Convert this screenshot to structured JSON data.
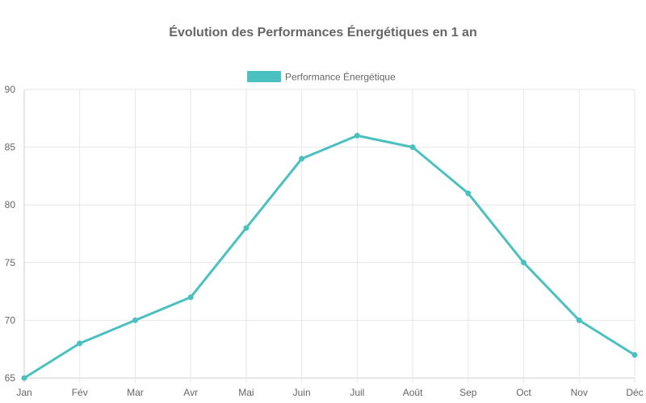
{
  "chart_data": {
    "type": "line",
    "title": "Évolution des Performances Énergétiques en 1 an",
    "categories": [
      "Jan",
      "Fév",
      "Mar",
      "Avr",
      "Mai",
      "Juin",
      "Juil",
      "Août",
      "Sep",
      "Oct",
      "Nov",
      "Déc"
    ],
    "series": [
      {
        "name": "Performance Énergétique",
        "values": [
          65,
          68,
          70,
          72,
          78,
          84,
          86,
          85,
          81,
          75,
          70,
          67
        ],
        "color": "#4bc0c0"
      }
    ],
    "ylim": [
      65,
      90
    ],
    "yticks": [
      65,
      70,
      75,
      80,
      85,
      90
    ],
    "xlabel": "",
    "ylabel": "",
    "grid": true,
    "legend": "top-center"
  }
}
